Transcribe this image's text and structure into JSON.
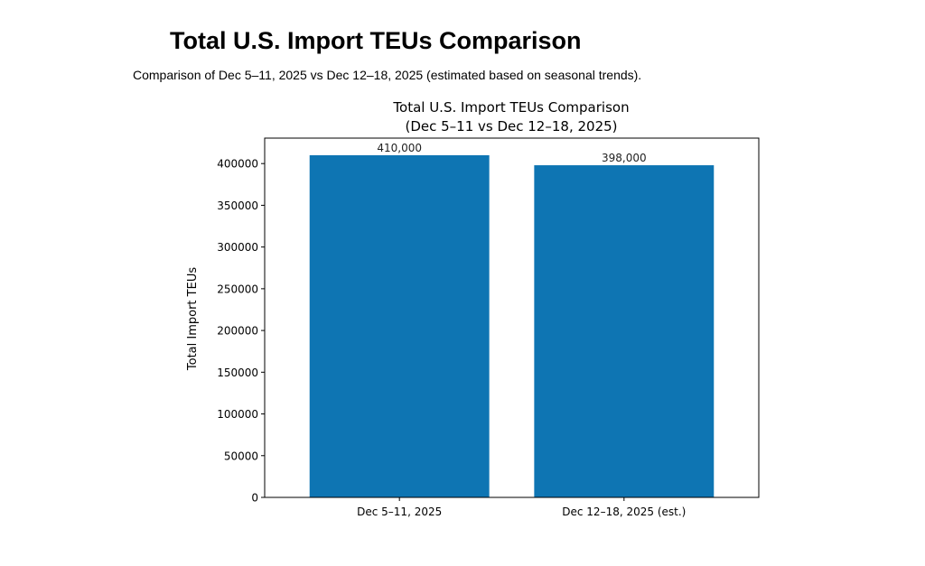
{
  "page": {
    "title": "Total U.S. Import TEUs Comparison",
    "subtitle": "Comparison of Dec 5–11, 2025 vs Dec 12–18, 2025 (estimated based on seasonal trends)."
  },
  "chart_data": {
    "type": "bar",
    "title_lines": [
      "Total U.S. Import TEUs Comparison",
      "(Dec 5–11 vs Dec 12–18, 2025)"
    ],
    "categories": [
      "Dec 5–11, 2025",
      "Dec 12–18, 2025 (est.)"
    ],
    "values": [
      410000,
      398000
    ],
    "data_labels": [
      "410,000",
      "398,000"
    ],
    "xlabel": "",
    "ylabel": "Total Import TEUs",
    "ylim": [
      0,
      430500
    ],
    "yticks": [
      0,
      50000,
      100000,
      150000,
      200000,
      250000,
      300000,
      350000,
      400000
    ],
    "bar_color": "#0e75b3",
    "grid": false,
    "legend": "none"
  }
}
